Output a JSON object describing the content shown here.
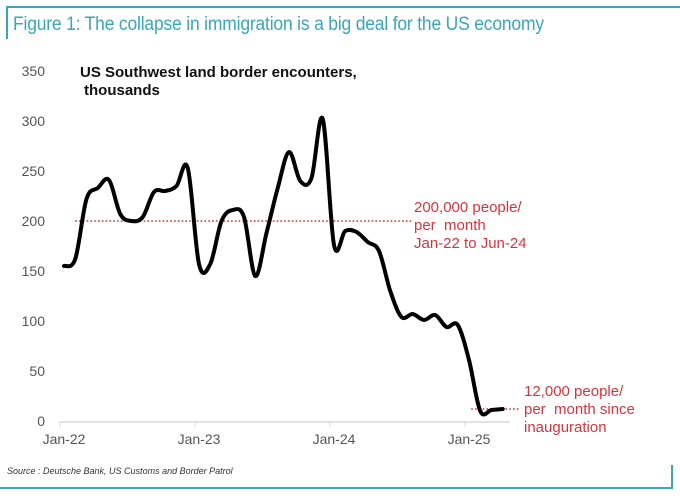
{
  "figure": {
    "title": "Figure 1: The collapse in immigration is a big deal for the US economy",
    "source": "Source : Deutsche Bank, US Customs and Border Patrol",
    "accent_color": "#3aa6b9"
  },
  "chart_data": {
    "type": "line",
    "title": "US Southwest land border encounters, thousands",
    "title_lines": [
      "US Southwest land border encounters,",
      "thousands"
    ],
    "xlabel": "",
    "ylabel": "",
    "ylim": [
      0,
      350
    ],
    "yticks": [
      0,
      50,
      100,
      150,
      200,
      250,
      300,
      350
    ],
    "xticks": [
      {
        "label": "Jan-22",
        "index": 0
      },
      {
        "label": "Jan-23",
        "index": 12
      },
      {
        "label": "Jan-24",
        "index": 24
      },
      {
        "label": "Jan-25",
        "index": 36
      }
    ],
    "grid": false,
    "legend": "none",
    "x": [
      "Jan-22",
      "Feb-22",
      "Mar-22",
      "Apr-22",
      "May-22",
      "Jun-22",
      "Jul-22",
      "Aug-22",
      "Sep-22",
      "Oct-22",
      "Nov-22",
      "Dec-22",
      "Jan-23",
      "Feb-23",
      "Mar-23",
      "Apr-23",
      "May-23",
      "Jun-23",
      "Jul-23",
      "Aug-23",
      "Sep-23",
      "Oct-23",
      "Nov-23",
      "Dec-23",
      "Jan-24",
      "Feb-24",
      "Mar-24",
      "Apr-24",
      "May-24",
      "Jun-24",
      "Jul-24",
      "Aug-24",
      "Sep-24",
      "Oct-24",
      "Nov-24",
      "Dec-24",
      "Jan-25",
      "Feb-25",
      "Mar-25",
      "Apr-25"
    ],
    "series": [
      {
        "name": "US Southwest land border encounters",
        "color": "#000000",
        "values": [
          155,
          162,
          222,
          233,
          241,
          207,
          200,
          204,
          229,
          230,
          235,
          253,
          157,
          157,
          200,
          211,
          204,
          145,
          188,
          233,
          269,
          240,
          243,
          302,
          176,
          190,
          189,
          179,
          170,
          130,
          104,
          107,
          101,
          106,
          94,
          96,
          61,
          10,
          11,
          12
        ]
      }
    ],
    "reference_lines": [
      {
        "name": "avg-2022-2024",
        "value": 200,
        "from_index": 1,
        "to_index": 31,
        "color": "#c0392b",
        "style": "dotted"
      },
      {
        "name": "avg-since-inauguration",
        "value": 12,
        "from_index": 36.2,
        "to_index": 40.5,
        "color": "#c0392b",
        "style": "dotted"
      }
    ],
    "annotations": [
      {
        "lines": [
          "200,000 people/",
          "per  month",
          "Jan-22 to Jun-24"
        ],
        "color": "#e0303a"
      },
      {
        "lines": [
          "12,000 people/",
          "per  month since",
          "inauguration"
        ],
        "color": "#e0303a"
      }
    ]
  }
}
